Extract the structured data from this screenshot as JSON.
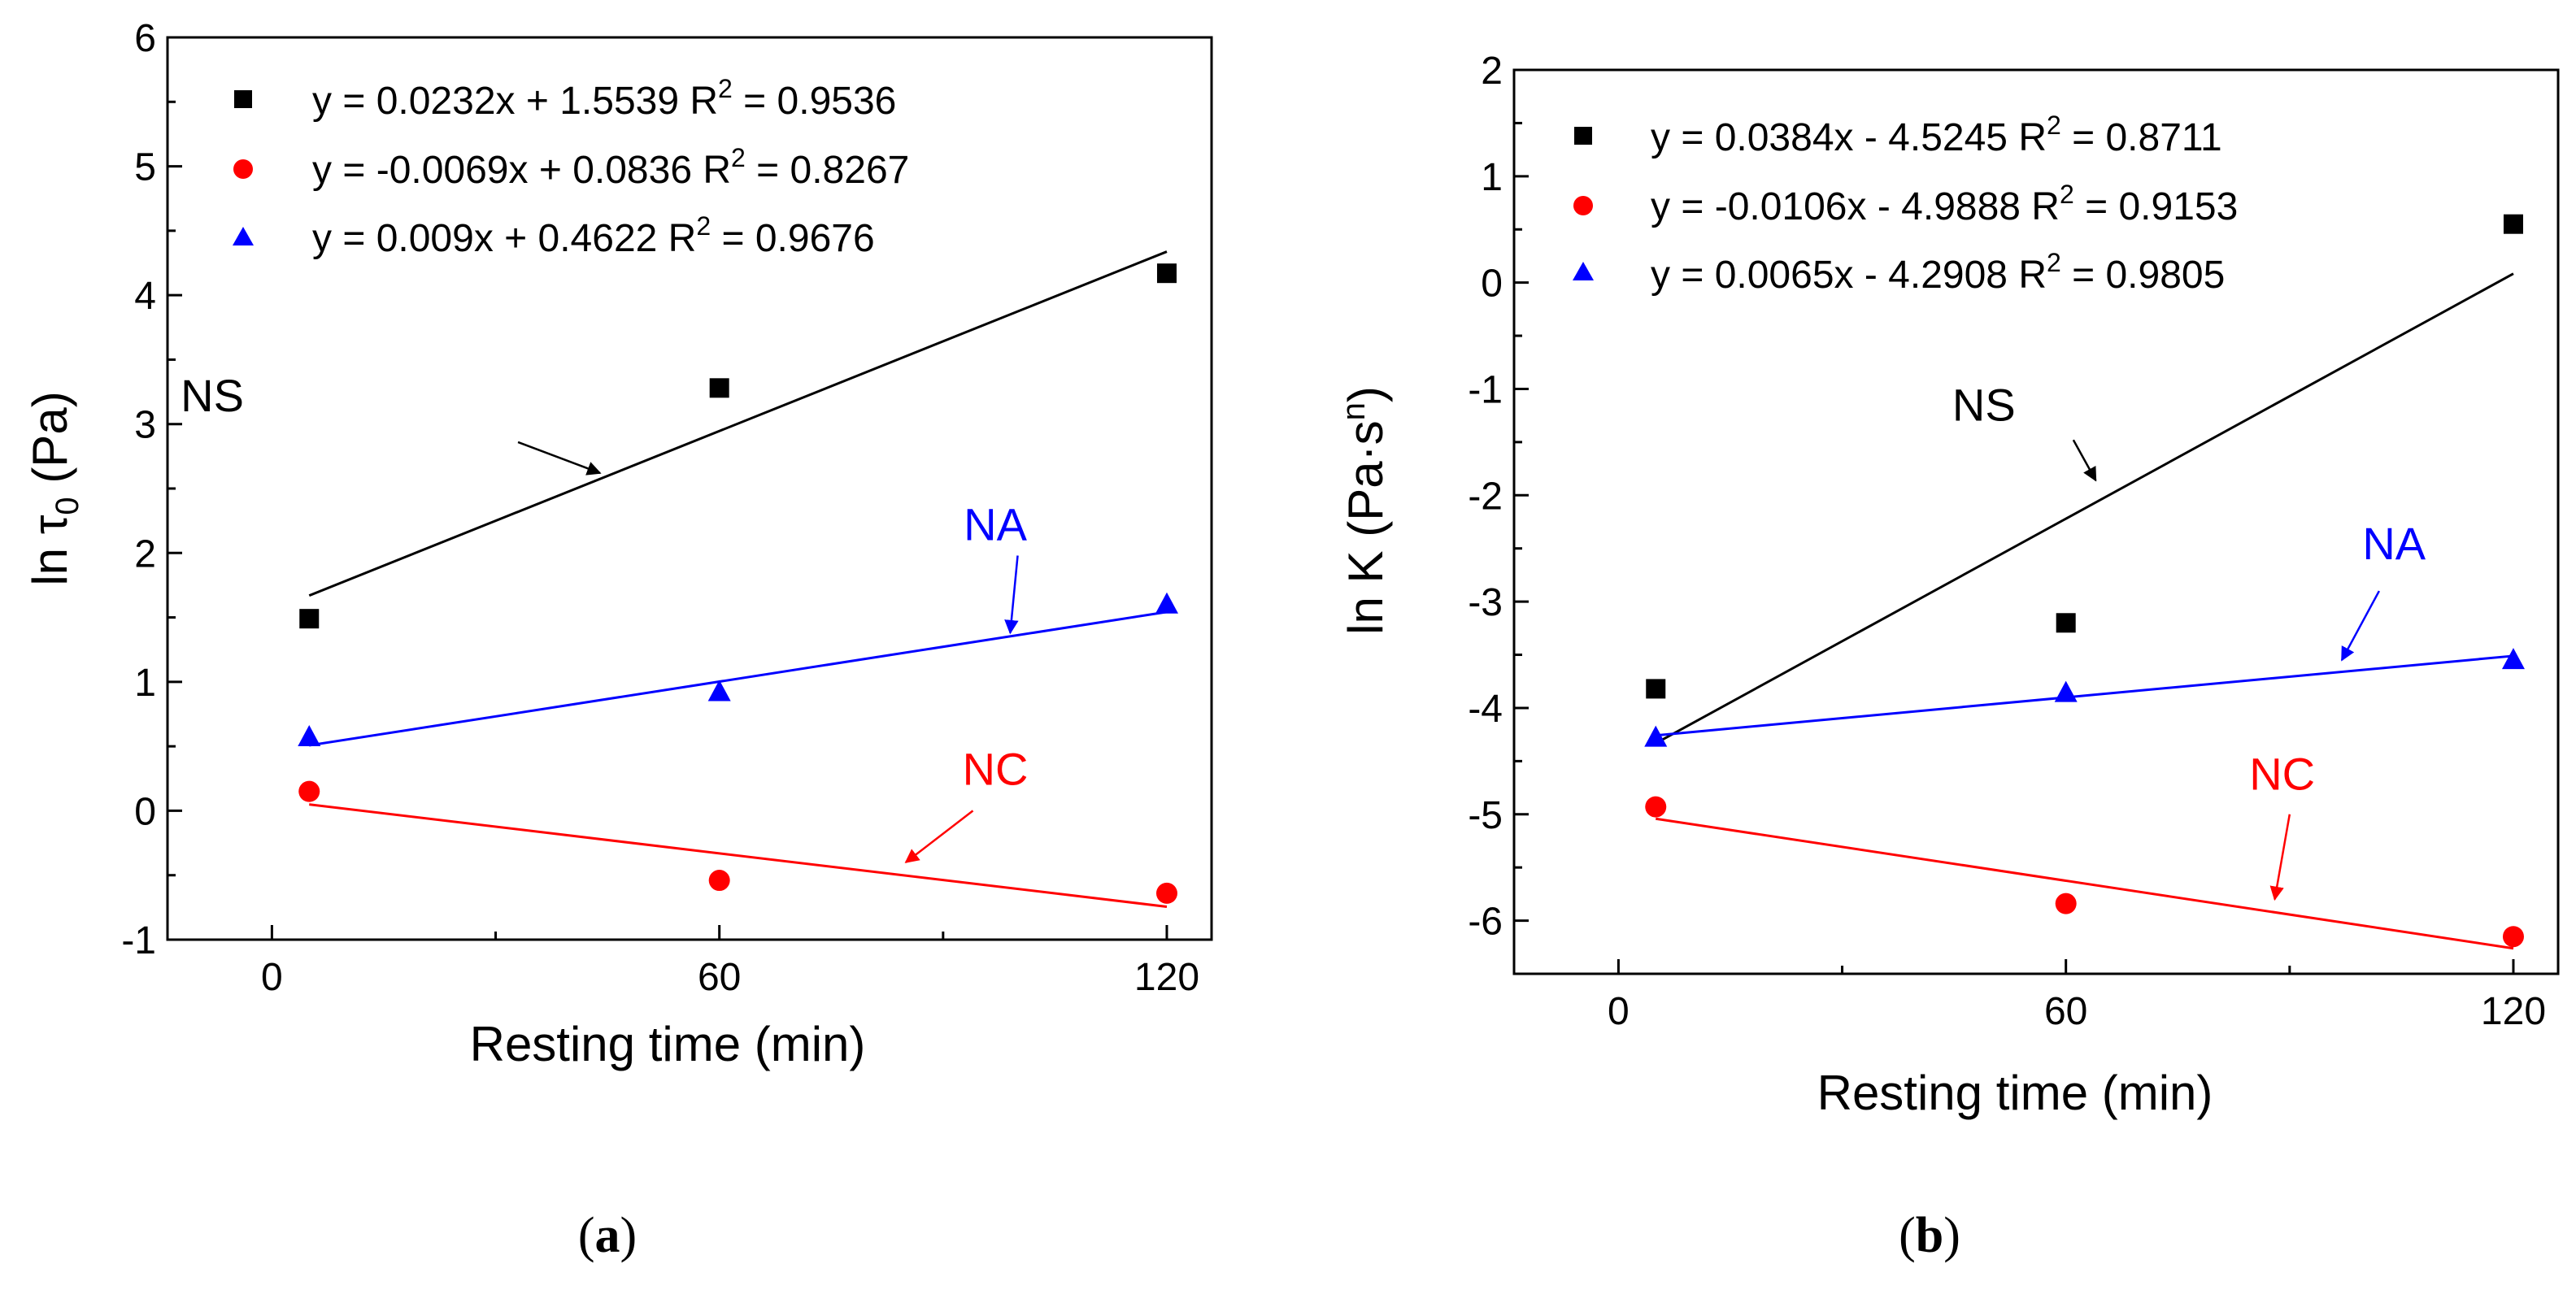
{
  "colors": {
    "NS": "#000000",
    "NC": "#ff0000",
    "NA": "#0000ff"
  },
  "chart_data": [
    {
      "type": "scatter",
      "panel": "(a)",
      "panel_open": "(",
      "panel_letter": "a",
      "panel_close": ")",
      "xlabel": "Resting time (min)",
      "ylabel_parts": {
        "main": "ln τ",
        "sub": "0",
        "rest": " (Pa)"
      },
      "xlim": [
        -14,
        126
      ],
      "ylim": [
        -1,
        6
      ],
      "xticks": [
        0,
        60,
        120
      ],
      "xtick_labels": [
        "0",
        "60",
        "120"
      ],
      "yticks": [
        -1,
        0,
        1,
        2,
        3,
        4,
        5,
        6
      ],
      "ytick_labels": [
        "-1",
        "0",
        "1",
        "2",
        "3",
        "4",
        "5",
        "6"
      ],
      "series": [
        {
          "name": "NS",
          "marker": "square",
          "color": "#000000",
          "x": [
            5,
            60,
            120
          ],
          "y": [
            1.49,
            3.28,
            4.17
          ],
          "fit": {
            "slope": 0.0232,
            "intercept": 1.5539
          },
          "legend": {
            "eq": "y = 0.0232x + 1.5539  R",
            "sup": "2",
            "r2": " = 0.9536"
          }
        },
        {
          "name": "NC",
          "marker": "circle",
          "color": "#ff0000",
          "x": [
            5,
            60,
            120
          ],
          "y": [
            0.15,
            -0.54,
            -0.64
          ],
          "fit": {
            "slope": -0.0069,
            "intercept": 0.0836
          },
          "legend": {
            "eq": "y = -0.0069x + 0.0836 R",
            "sup": "2",
            "r2": " = 0.8267"
          }
        },
        {
          "name": "NA",
          "marker": "triangle",
          "color": "#0000ff",
          "x": [
            5,
            60,
            120
          ],
          "y": [
            0.57,
            0.92,
            1.6
          ],
          "fit": {
            "slope": 0.009,
            "intercept": 0.4622
          },
          "legend": {
            "eq": "y = 0.009x + 0.4622    R",
            "sup": "2",
            "r2": " = 0.9676"
          }
        }
      ],
      "annotations": [
        {
          "text": "NS",
          "color": "#000000",
          "label_at": [
            -8,
            3.1
          ],
          "arrow_from": [
            33,
            2.86
          ],
          "arrow_to": [
            44,
            2.62
          ]
        },
        {
          "text": "NA",
          "color": "#0000ff",
          "label_at": [
            97,
            2.1
          ],
          "arrow_from": [
            100,
            1.98
          ],
          "arrow_to": [
            99,
            1.38
          ]
        },
        {
          "text": "NC",
          "color": "#ff0000",
          "label_at": [
            97,
            0.2
          ],
          "arrow_from": [
            94,
            0.0
          ],
          "arrow_to": [
            85,
            -0.4
          ]
        }
      ]
    },
    {
      "type": "scatter",
      "panel": "(b)",
      "panel_open": "(",
      "panel_letter": "b",
      "panel_close": ")",
      "xlabel": "Resting time (min)",
      "ylabel_parts": {
        "main": "ln K (Pa·s",
        "sup": "n",
        "rest": ")"
      },
      "xlim": [
        -14,
        126
      ],
      "ylim": [
        -6.5,
        2
      ],
      "xticks": [
        0,
        60,
        120
      ],
      "xtick_labels": [
        "0",
        "60",
        "120"
      ],
      "yticks": [
        -6,
        -5,
        -4,
        -3,
        -2,
        -1,
        0,
        1,
        2
      ],
      "ytick_labels": [
        "-6",
        "-5",
        "-4",
        "-3",
        "-2",
        "-1",
        "0",
        "1",
        "2"
      ],
      "series": [
        {
          "name": "NS",
          "marker": "square",
          "color": "#000000",
          "x": [
            5,
            60,
            120
          ],
          "y": [
            -3.82,
            -3.2,
            0.55
          ],
          "fit": {
            "slope": 0.0384,
            "intercept": -4.5245
          },
          "legend": {
            "eq": "y = 0.0384x - 4.5245    R",
            "sup": "2",
            "r2": " = 0.8711"
          }
        },
        {
          "name": "NC",
          "marker": "circle",
          "color": "#ff0000",
          "x": [
            5,
            60,
            120
          ],
          "y": [
            -4.93,
            -5.84,
            -6.15
          ],
          "fit": {
            "slope": -0.0106,
            "intercept": -4.9888
          },
          "legend": {
            "eq": "y = -0.0106x - 4.9888  R",
            "sup": "2",
            "r2": " = 0.9153"
          }
        },
        {
          "name": "NA",
          "marker": "triangle",
          "color": "#0000ff",
          "x": [
            5,
            60,
            120
          ],
          "y": [
            -4.28,
            -3.86,
            -3.55
          ],
          "fit": {
            "slope": 0.0065,
            "intercept": -4.2908
          },
          "legend": {
            "eq": "y = 0.0065x - 4.2908    R",
            "sup": "2",
            "r2": " = 0.9805"
          }
        }
      ],
      "annotations": [
        {
          "text": "NS",
          "color": "#000000",
          "label_at": [
            49,
            -1.3
          ],
          "arrow_from": [
            61,
            -1.48
          ],
          "arrow_to": [
            64,
            -1.86
          ]
        },
        {
          "text": "NA",
          "color": "#0000ff",
          "label_at": [
            104,
            -2.6
          ],
          "arrow_from": [
            102,
            -2.9
          ],
          "arrow_to": [
            97,
            -3.55
          ]
        },
        {
          "text": "NC",
          "color": "#ff0000",
          "label_at": [
            89,
            -4.77
          ],
          "arrow_from": [
            90,
            -5.0
          ],
          "arrow_to": [
            88,
            -5.8
          ]
        }
      ]
    }
  ]
}
